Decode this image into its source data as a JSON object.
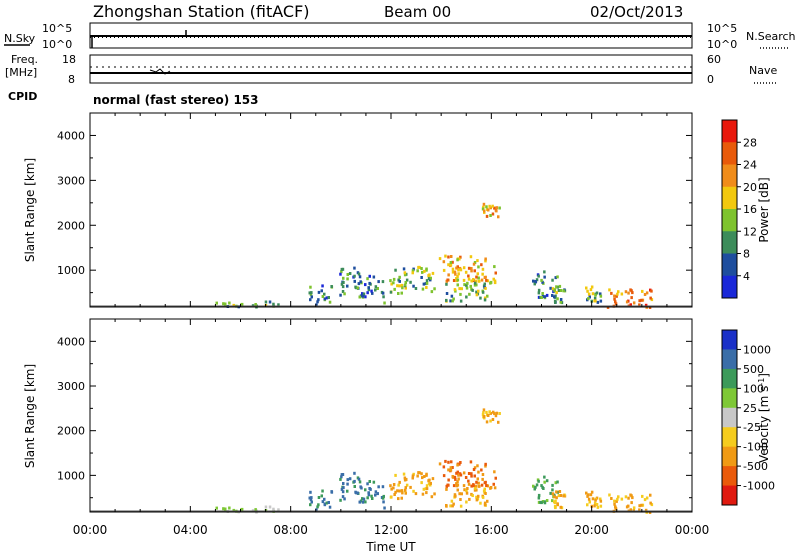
{
  "header": {
    "title": "Zhongshan Station (fitACF)",
    "beam": "Beam 00",
    "date": "02/Oct/2013"
  },
  "noise_panel": {
    "left_label": "N.Sky",
    "right_label": "N.Search",
    "left_ticks": [
      "10^5",
      "10^0"
    ],
    "right_ticks": [
      "10^5",
      "10^0"
    ]
  },
  "freq_panel": {
    "left_label": "Freq.",
    "left_unit": "[MHz]",
    "right_label": "Nave",
    "left_ticks": [
      "18",
      "8"
    ],
    "right_ticks": [
      "60",
      "0"
    ]
  },
  "cpid": {
    "label": "CPID",
    "text": "normal (fast stereo) 153"
  },
  "power_panel": {
    "ylabel": "Slant Range [km]",
    "cbar_label": "Power [dB]",
    "cbar_ticks": [
      "28",
      "24",
      "20",
      "16",
      "12",
      "8",
      "4"
    ],
    "cbar_colors": [
      "#e8180c",
      "#e85a0a",
      "#f08c1a",
      "#f2c80e",
      "#7ec32e",
      "#3c8c5a",
      "#1e4e9e",
      "#1a28d8"
    ]
  },
  "velocity_panel": {
    "ylabel": "Slant Range [km]",
    "cbar_label": "Velocity [m s^-1]",
    "cbar_ticks": [
      "1000",
      "500",
      "100",
      "25",
      "-25",
      "-100",
      "-500",
      "-1000"
    ],
    "cbar_colors": [
      "#1a30c8",
      "#3a6ea8",
      "#3c9a5a",
      "#7ec836",
      "#c8c8c8",
      "#f5cc1e",
      "#f09a14",
      "#ea5a0a",
      "#e01a10"
    ]
  },
  "xaxis": {
    "label": "Time UT",
    "ticks": [
      "00:00",
      "04:00",
      "08:00",
      "12:00",
      "16:00",
      "20:00",
      "00:00"
    ]
  },
  "chart_data": {
    "type": "heatmap",
    "title": "Zhongshan Station (fitACF) Beam 00 02/Oct/2013",
    "xlabel": "Time UT",
    "ylabel": "Slant Range [km]",
    "xlim": [
      0,
      24
    ],
    "ylim": [
      180,
      4500
    ],
    "x_ticks": [
      "00:00",
      "04:00",
      "08:00",
      "12:00",
      "16:00",
      "20:00",
      "00:00"
    ],
    "y_ticks": [
      1000,
      2000,
      3000,
      4000
    ],
    "panels": [
      {
        "name": "Power",
        "unit": "dB",
        "color_ticks": [
          4,
          8,
          12,
          16,
          20,
          24,
          28
        ]
      },
      {
        "name": "Velocity",
        "unit": "m s^-1",
        "color_ticks": [
          -1000,
          -500,
          -100,
          -25,
          25,
          100,
          500,
          1000
        ]
      }
    ],
    "scatter_regions": [
      {
        "t0": 4.7,
        "t1": 7.6,
        "r0": 200,
        "r1": 330,
        "power": 12,
        "velocity": 25
      },
      {
        "t0": 8.7,
        "t1": 9.6,
        "r0": 250,
        "r1": 700,
        "power": 8,
        "velocity": 500
      },
      {
        "t0": 9.9,
        "t1": 10.7,
        "r0": 450,
        "r1": 1100,
        "power": 8,
        "velocity": 500
      },
      {
        "t0": 10.7,
        "t1": 11.7,
        "r0": 300,
        "r1": 900,
        "power": 8,
        "velocity": 500
      },
      {
        "t0": 11.9,
        "t1": 13.7,
        "r0": 500,
        "r1": 1100,
        "power": 12,
        "velocity": -100
      },
      {
        "t0": 13.9,
        "t1": 16.2,
        "r0": 700,
        "r1": 1350,
        "power": 20,
        "velocity": -500
      },
      {
        "t0": 14.1,
        "t1": 15.8,
        "r0": 300,
        "r1": 750,
        "power": 12,
        "velocity": -100
      },
      {
        "t0": 15.6,
        "t1": 16.3,
        "r0": 2200,
        "r1": 2500,
        "power": 20,
        "velocity": -100
      },
      {
        "t0": 17.6,
        "t1": 18.6,
        "r0": 400,
        "r1": 1000,
        "power": 8,
        "velocity": 100
      },
      {
        "t0": 18.4,
        "t1": 18.9,
        "r0": 300,
        "r1": 700,
        "power": 12,
        "velocity": -100
      },
      {
        "t0": 19.7,
        "t1": 20.4,
        "r0": 300,
        "r1": 700,
        "power": 12,
        "velocity": -100
      },
      {
        "t0": 20.6,
        "t1": 22.4,
        "r0": 200,
        "r1": 600,
        "power": 24,
        "velocity": -100
      }
    ]
  }
}
